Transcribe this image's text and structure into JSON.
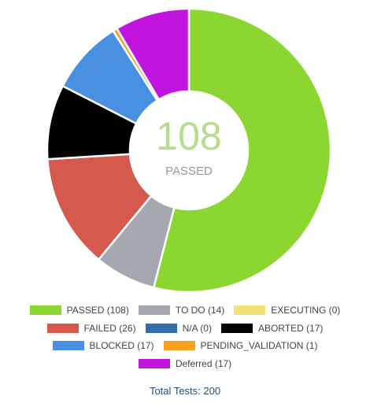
{
  "chart_data": {
    "type": "pie",
    "donut": true,
    "center": {
      "value": "108",
      "label": "PASSED"
    },
    "series": [
      {
        "name": "PASSED",
        "value": 108,
        "color": "#8cd631",
        "legend": "PASSED (108)"
      },
      {
        "name": "TO DO",
        "value": 14,
        "color": "#a5a8ae",
        "legend": "TO DO (14)"
      },
      {
        "name": "EXECUTING",
        "value": 0,
        "color": "#f2e177",
        "legend": "EXECUTING (0)"
      },
      {
        "name": "FAILED",
        "value": 26,
        "color": "#d6594d",
        "legend": "FAILED (26)"
      },
      {
        "name": "N/A",
        "value": 0,
        "color": "#326ea8",
        "legend": "N/A (0)"
      },
      {
        "name": "ABORTED",
        "value": 17,
        "color": "#000000",
        "legend": "ABORTED (17)"
      },
      {
        "name": "BLOCKED",
        "value": 17,
        "color": "#4a90e2",
        "legend": "BLOCKED (17)"
      },
      {
        "name": "PENDING_VALIDATION",
        "value": 1,
        "color": "#f5a31f",
        "legend": "PENDING_VALIDATION (1)"
      },
      {
        "name": "Deferred",
        "value": 17,
        "color": "#c114df",
        "legend": "Deferred (17)"
      }
    ],
    "legend_rows": [
      [
        "PASSED",
        "TO DO",
        "EXECUTING"
      ],
      [
        "FAILED",
        "N/A",
        "ABORTED"
      ],
      [
        "BLOCKED",
        "PENDING_VALIDATION"
      ],
      [
        "Deferred"
      ]
    ],
    "legend_position": "bottom",
    "footer": "Total Tests: 200"
  }
}
